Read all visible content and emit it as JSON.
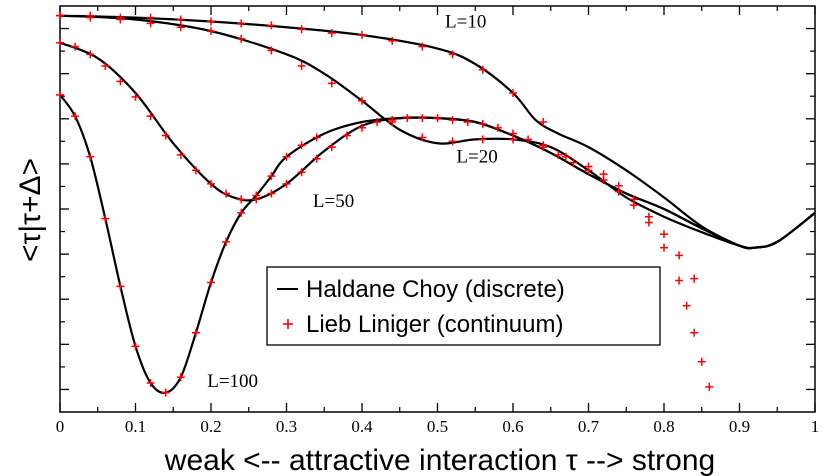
{
  "chart_data": {
    "type": "line",
    "title": "",
    "xlabel": "weak  <--  attractive interaction τ  --> strong",
    "ylabel": "<τ|τ+Δ>",
    "xlim": [
      0,
      1
    ],
    "ylim": [
      -1.05,
      1.05
    ],
    "xticks": [
      0,
      0.1,
      0.2,
      0.3,
      0.4,
      0.5,
      0.6,
      0.7,
      0.8,
      0.9,
      1
    ],
    "xtick_labels": [
      "0",
      "0.1",
      "0.2",
      "0.3",
      "0.4",
      "0.5",
      "0.6",
      "0.7",
      "0.8",
      "0.9",
      "1"
    ],
    "yticks_count": 9,
    "show_ytick_labels": false,
    "legend": {
      "placement": "bottom-center",
      "entries": [
        {
          "label": "Haldane Choy (discrete)",
          "style": "line",
          "color": "#000000"
        },
        {
          "label": "Lieb Liniger (continuum)",
          "style": "plus",
          "color": "#ff0000"
        }
      ]
    },
    "annotations": [
      {
        "text": "L=10",
        "x": 0.51,
        "y": 0.94
      },
      {
        "text": "L=20",
        "x": 0.525,
        "y": 0.24
      },
      {
        "text": "L=50",
        "x": 0.335,
        "y": 0.01
      },
      {
        "text": "L=100",
        "x": 0.195,
        "y": -0.92
      }
    ],
    "series": [
      {
        "name": "Haldane Choy L=10",
        "kind": "line",
        "color": "#000000",
        "x": [
          0,
          0.1,
          0.2,
          0.3,
          0.4,
          0.5,
          0.55,
          0.6,
          0.63,
          0.66,
          0.7,
          0.75,
          0.8,
          0.85,
          0.9,
          0.92,
          0.95,
          1.0
        ],
        "y": [
          1.0,
          0.99,
          0.97,
          0.94,
          0.9,
          0.83,
          0.75,
          0.6,
          0.46,
          0.39,
          0.32,
          0.2,
          0.06,
          -0.09,
          -0.19,
          -0.2,
          -0.17,
          -0.02
        ]
      },
      {
        "name": "Haldane Choy L=20",
        "kind": "line",
        "color": "#000000",
        "x": [
          0,
          0.1,
          0.2,
          0.3,
          0.35,
          0.4,
          0.45,
          0.5,
          0.55,
          0.6,
          0.65,
          0.7,
          0.75,
          0.8,
          0.85,
          0.9,
          0.92,
          0.95,
          1.0
        ],
        "y": [
          1.0,
          0.98,
          0.92,
          0.8,
          0.7,
          0.56,
          0.41,
          0.34,
          0.36,
          0.36,
          0.32,
          0.2,
          0.06,
          -0.04,
          -0.12,
          -0.19,
          -0.2,
          -0.17,
          -0.02
        ]
      },
      {
        "name": "Haldane Choy L=50",
        "kind": "line",
        "color": "#000000",
        "x": [
          0,
          0.05,
          0.1,
          0.15,
          0.2,
          0.23,
          0.26,
          0.3,
          0.35,
          0.4,
          0.45,
          0.5,
          0.55,
          0.6,
          0.65,
          0.7,
          0.75,
          0.8,
          0.85,
          0.9,
          0.92,
          0.95,
          1.0
        ],
        "y": [
          0.86,
          0.78,
          0.6,
          0.34,
          0.13,
          0.06,
          0.05,
          0.13,
          0.3,
          0.43,
          0.47,
          0.47,
          0.45,
          0.38,
          0.29,
          0.18,
          0.08,
          0.0,
          -0.1,
          -0.19,
          -0.2,
          -0.17,
          -0.02
        ]
      },
      {
        "name": "Haldane Choy L=100",
        "kind": "line",
        "color": "#000000",
        "x": [
          0,
          0.02,
          0.04,
          0.06,
          0.08,
          0.1,
          0.12,
          0.14,
          0.16,
          0.18,
          0.2,
          0.22,
          0.24,
          0.26,
          0.28,
          0.3,
          0.35,
          0.4,
          0.45,
          0.5,
          0.55,
          0.6,
          0.65,
          0.7,
          0.75,
          0.8,
          0.85,
          0.9,
          0.92,
          0.95,
          1.0
        ],
        "y": [
          0.59,
          0.48,
          0.27,
          -0.05,
          -0.4,
          -0.71,
          -0.9,
          -0.95,
          -0.87,
          -0.64,
          -0.38,
          -0.17,
          -0.02,
          0.07,
          0.17,
          0.27,
          0.39,
          0.45,
          0.47,
          0.47,
          0.45,
          0.38,
          0.29,
          0.18,
          0.08,
          0.0,
          -0.1,
          -0.19,
          -0.2,
          -0.17,
          -0.02
        ]
      },
      {
        "name": "Lieb Liniger L=10",
        "kind": "plus",
        "color": "#ff0000",
        "x": [
          0,
          0.04,
          0.08,
          0.12,
          0.16,
          0.2,
          0.24,
          0.28,
          0.32,
          0.36,
          0.4,
          0.44,
          0.48,
          0.52,
          0.56,
          0.6,
          0.64
        ],
        "y": [
          1.0,
          1.0,
          0.99,
          0.99,
          0.98,
          0.97,
          0.96,
          0.95,
          0.93,
          0.91,
          0.9,
          0.87,
          0.84,
          0.8,
          0.72,
          0.6,
          0.45
        ]
      },
      {
        "name": "Lieb Liniger L=20",
        "kind": "plus",
        "color": "#ff0000",
        "x": [
          0,
          0.04,
          0.08,
          0.12,
          0.16,
          0.2,
          0.24,
          0.28,
          0.32,
          0.36,
          0.4,
          0.44,
          0.48,
          0.52,
          0.56,
          0.6,
          0.64,
          0.67,
          0.7,
          0.72,
          0.74,
          0.76,
          0.78,
          0.8,
          0.82,
          0.84
        ],
        "y": [
          1.0,
          0.99,
          0.98,
          0.96,
          0.94,
          0.92,
          0.88,
          0.82,
          0.74,
          0.65,
          0.56,
          0.45,
          0.37,
          0.35,
          0.36,
          0.36,
          0.33,
          0.27,
          0.22,
          0.18,
          0.12,
          0.05,
          -0.04,
          -0.13,
          -0.24,
          -0.36
        ]
      },
      {
        "name": "Lieb Liniger L=50",
        "kind": "plus",
        "color": "#ff0000",
        "x": [
          0,
          0.02,
          0.04,
          0.06,
          0.08,
          0.1,
          0.12,
          0.14,
          0.16,
          0.18,
          0.2,
          0.22,
          0.24,
          0.26,
          0.28,
          0.3,
          0.32,
          0.34,
          0.36,
          0.38,
          0.4,
          0.42,
          0.44,
          0.46,
          0.48,
          0.5,
          0.52,
          0.54,
          0.56,
          0.58,
          0.6,
          0.62,
          0.64,
          0.66,
          0.68,
          0.7,
          0.72,
          0.74,
          0.76,
          0.78,
          0.8,
          0.82,
          0.83,
          0.84,
          0.85,
          0.86
        ],
        "y": [
          0.86,
          0.84,
          0.8,
          0.74,
          0.66,
          0.58,
          0.48,
          0.38,
          0.28,
          0.2,
          0.13,
          0.08,
          0.05,
          0.05,
          0.08,
          0.13,
          0.19,
          0.26,
          0.32,
          0.38,
          0.42,
          0.45,
          0.46,
          0.47,
          0.47,
          0.47,
          0.46,
          0.45,
          0.44,
          0.42,
          0.39,
          0.36,
          0.32,
          0.28,
          0.24,
          0.2,
          0.15,
          0.09,
          0.02,
          -0.07,
          -0.2,
          -0.37,
          -0.5,
          -0.64,
          -0.79,
          -0.92
        ]
      },
      {
        "name": "Lieb Liniger L=100",
        "kind": "plus",
        "color": "#ff0000",
        "x": [
          0,
          0.02,
          0.04,
          0.06,
          0.08,
          0.1,
          0.12,
          0.14,
          0.16,
          0.18,
          0.2,
          0.22,
          0.24,
          0.26,
          0.28,
          0.3,
          0.32,
          0.34
        ],
        "y": [
          0.59,
          0.48,
          0.27,
          -0.05,
          -0.4,
          -0.71,
          -0.9,
          -0.95,
          -0.87,
          -0.64,
          -0.38,
          -0.17,
          -0.02,
          0.07,
          0.17,
          0.27,
          0.33,
          0.37
        ]
      }
    ]
  },
  "colors": {
    "line": "#000000",
    "marker": "#ff0000",
    "axis": "#000000",
    "background": "#ffffff"
  }
}
